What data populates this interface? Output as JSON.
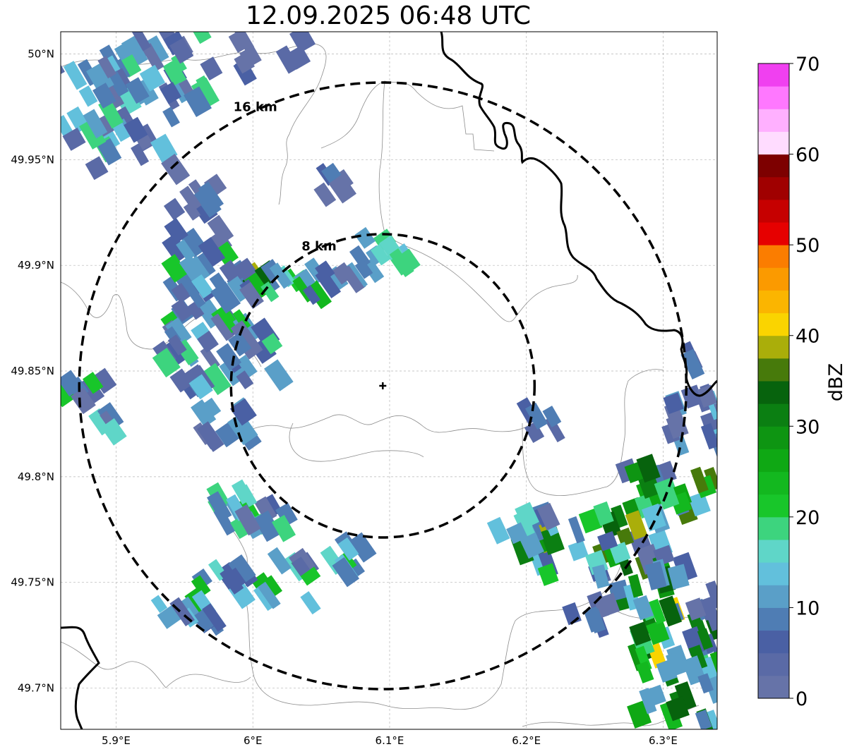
{
  "title": "12.09.2025 06:48 UTC",
  "map": {
    "lon_ticks": [
      {
        "value": 5.9,
        "label": "5.9°E"
      },
      {
        "value": 6.0,
        "label": "6°E"
      },
      {
        "value": 6.1,
        "label": "6.1°E"
      },
      {
        "value": 6.2,
        "label": "6.2°E"
      },
      {
        "value": 6.3,
        "label": "6.3°E"
      }
    ],
    "lat_ticks": [
      {
        "value": 50.0,
        "label": "50°N"
      },
      {
        "value": 49.95,
        "label": "49.95°N"
      },
      {
        "value": 49.9,
        "label": "49.9°N"
      },
      {
        "value": 49.85,
        "label": "49.85°N"
      },
      {
        "value": 49.8,
        "label": "49.8°N"
      },
      {
        "value": 49.75,
        "label": "49.75°N"
      },
      {
        "value": 49.7,
        "label": "49.7°N"
      }
    ],
    "range_rings": [
      {
        "label": "8 km",
        "radius_km": 8
      },
      {
        "label": "16 km",
        "radius_km": 16
      }
    ],
    "radar_site": {
      "lon": 6.095,
      "lat": 49.843
    }
  },
  "colorbar": {
    "label": "dBZ",
    "tick_labels": [
      "0",
      "10",
      "20",
      "30",
      "40",
      "50",
      "60",
      "70"
    ],
    "colors": [
      "#6673a8",
      "#5a6aa6",
      "#4a60a4",
      "#4f7db4",
      "#5a9fc8",
      "#62c0dc",
      "#5fd6c8",
      "#3dd47e",
      "#18c62a",
      "#13b81f",
      "#0fa814",
      "#0e9512",
      "#0b7f12",
      "#07630d",
      "#477a0b",
      "#aaae0a",
      "#fad400",
      "#fbb500",
      "#fb9a00",
      "#fb7d00",
      "#e60000",
      "#c60000",
      "#a00000",
      "#7d0000",
      "#ffdcff",
      "#ffb0ff",
      "#ff78ff",
      "#f040f0"
    ]
  }
}
